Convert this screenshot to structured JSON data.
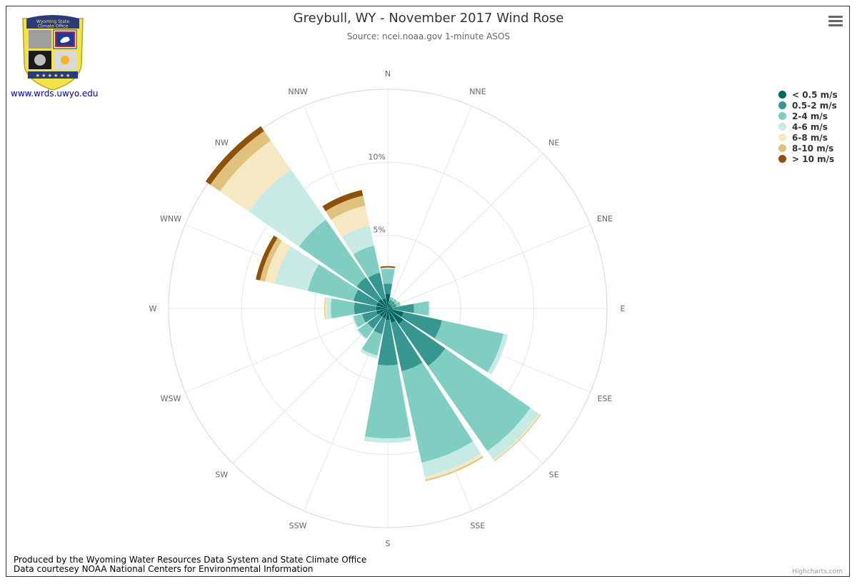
{
  "header": {
    "title": "Greybull, WY - November 2017 Wind Rose",
    "subtitle": "Source: ncei.noaa.gov 1-minute ASOS",
    "site_link": "www.wrds.uwyo.edu",
    "logo_text_line1": "Wyoming State",
    "logo_text_line2": "Climate Office"
  },
  "footer": {
    "line1": "Produced by the Wyoming Water Resources Data System and State Climate Office",
    "line2": "Data courtesey NOAA National Centers for Environmental Information",
    "credits": "Highcharts.com"
  },
  "colors": {
    "grid": "#e6e6e6",
    "outer_ring": "#ccd6eb",
    "axis_label": "#666666"
  },
  "chart_data": {
    "type": "windrose",
    "title": "Greybull, WY - November 2017 Wind Rose",
    "subtitle": "Source: ncei.noaa.gov 1-minute ASOS",
    "directions": [
      "N",
      "NNE",
      "NE",
      "ENE",
      "E",
      "ESE",
      "SE",
      "SSE",
      "S",
      "SSW",
      "SW",
      "WSW",
      "W",
      "WNW",
      "NW",
      "NNW"
    ],
    "radial_ticks": [
      "5%",
      "10%"
    ],
    "radial_tick_values": [
      5,
      10
    ],
    "radial_max": 15,
    "stacking": "normal",
    "legend_position": "top-right",
    "series": [
      {
        "name": "< 0.5 m/s",
        "color": "#01665e",
        "values": [
          1.0,
          0.3,
          0.3,
          0.3,
          0.3,
          1.1,
          1.3,
          1.0,
          0.8,
          0.7,
          0.7,
          0.8,
          0.8,
          0.8,
          0.8,
          0.7
        ]
      },
      {
        "name": "0.5-2 m/s",
        "color": "#35978f",
        "values": [
          0.7,
          0.3,
          0.3,
          0.3,
          1.5,
          2.7,
          3.5,
          3.4,
          3.1,
          1.1,
          1.0,
          1.0,
          1.5,
          1.6,
          1.8,
          1.8
        ]
      },
      {
        "name": "2-4 m/s",
        "color": "#80cdc1",
        "values": [
          1.0,
          0.2,
          0.2,
          0.3,
          1.0,
          4.3,
          7.1,
          6.4,
          5.0,
          1.5,
          0.8,
          0.6,
          1.6,
          3.2,
          4.8,
          1.9
        ]
      },
      {
        "name": "4-6 m/s",
        "color": "#c7eae5",
        "values": [
          0.1,
          0.0,
          0.0,
          0.0,
          0.1,
          0.3,
          0.7,
          1.0,
          0.3,
          0.2,
          0.1,
          0.1,
          0.3,
          2.3,
          4.2,
          1.4
        ]
      },
      {
        "name": "6-8 m/s",
        "color": "#f6e8c3",
        "values": [
          0.0,
          0.0,
          0.0,
          0.0,
          0.0,
          0.0,
          0.1,
          0.2,
          0.0,
          0.0,
          0.0,
          0.0,
          0.1,
          0.7,
          2.4,
          1.4
        ]
      },
      {
        "name": "8-10 m/s",
        "color": "#dfc27d",
        "values": [
          0.0,
          0.0,
          0.0,
          0.0,
          0.0,
          0.0,
          0.05,
          0.1,
          0.0,
          0.0,
          0.0,
          0.0,
          0.05,
          0.35,
          0.8,
          0.7
        ]
      },
      {
        "name": "> 10 m/s",
        "color": "#8c510a",
        "values": [
          0.1,
          0.0,
          0.0,
          0.0,
          0.0,
          0.0,
          0.0,
          0.0,
          0.0,
          0.0,
          0.0,
          0.0,
          0.0,
          0.3,
          0.4,
          0.4
        ]
      }
    ]
  }
}
